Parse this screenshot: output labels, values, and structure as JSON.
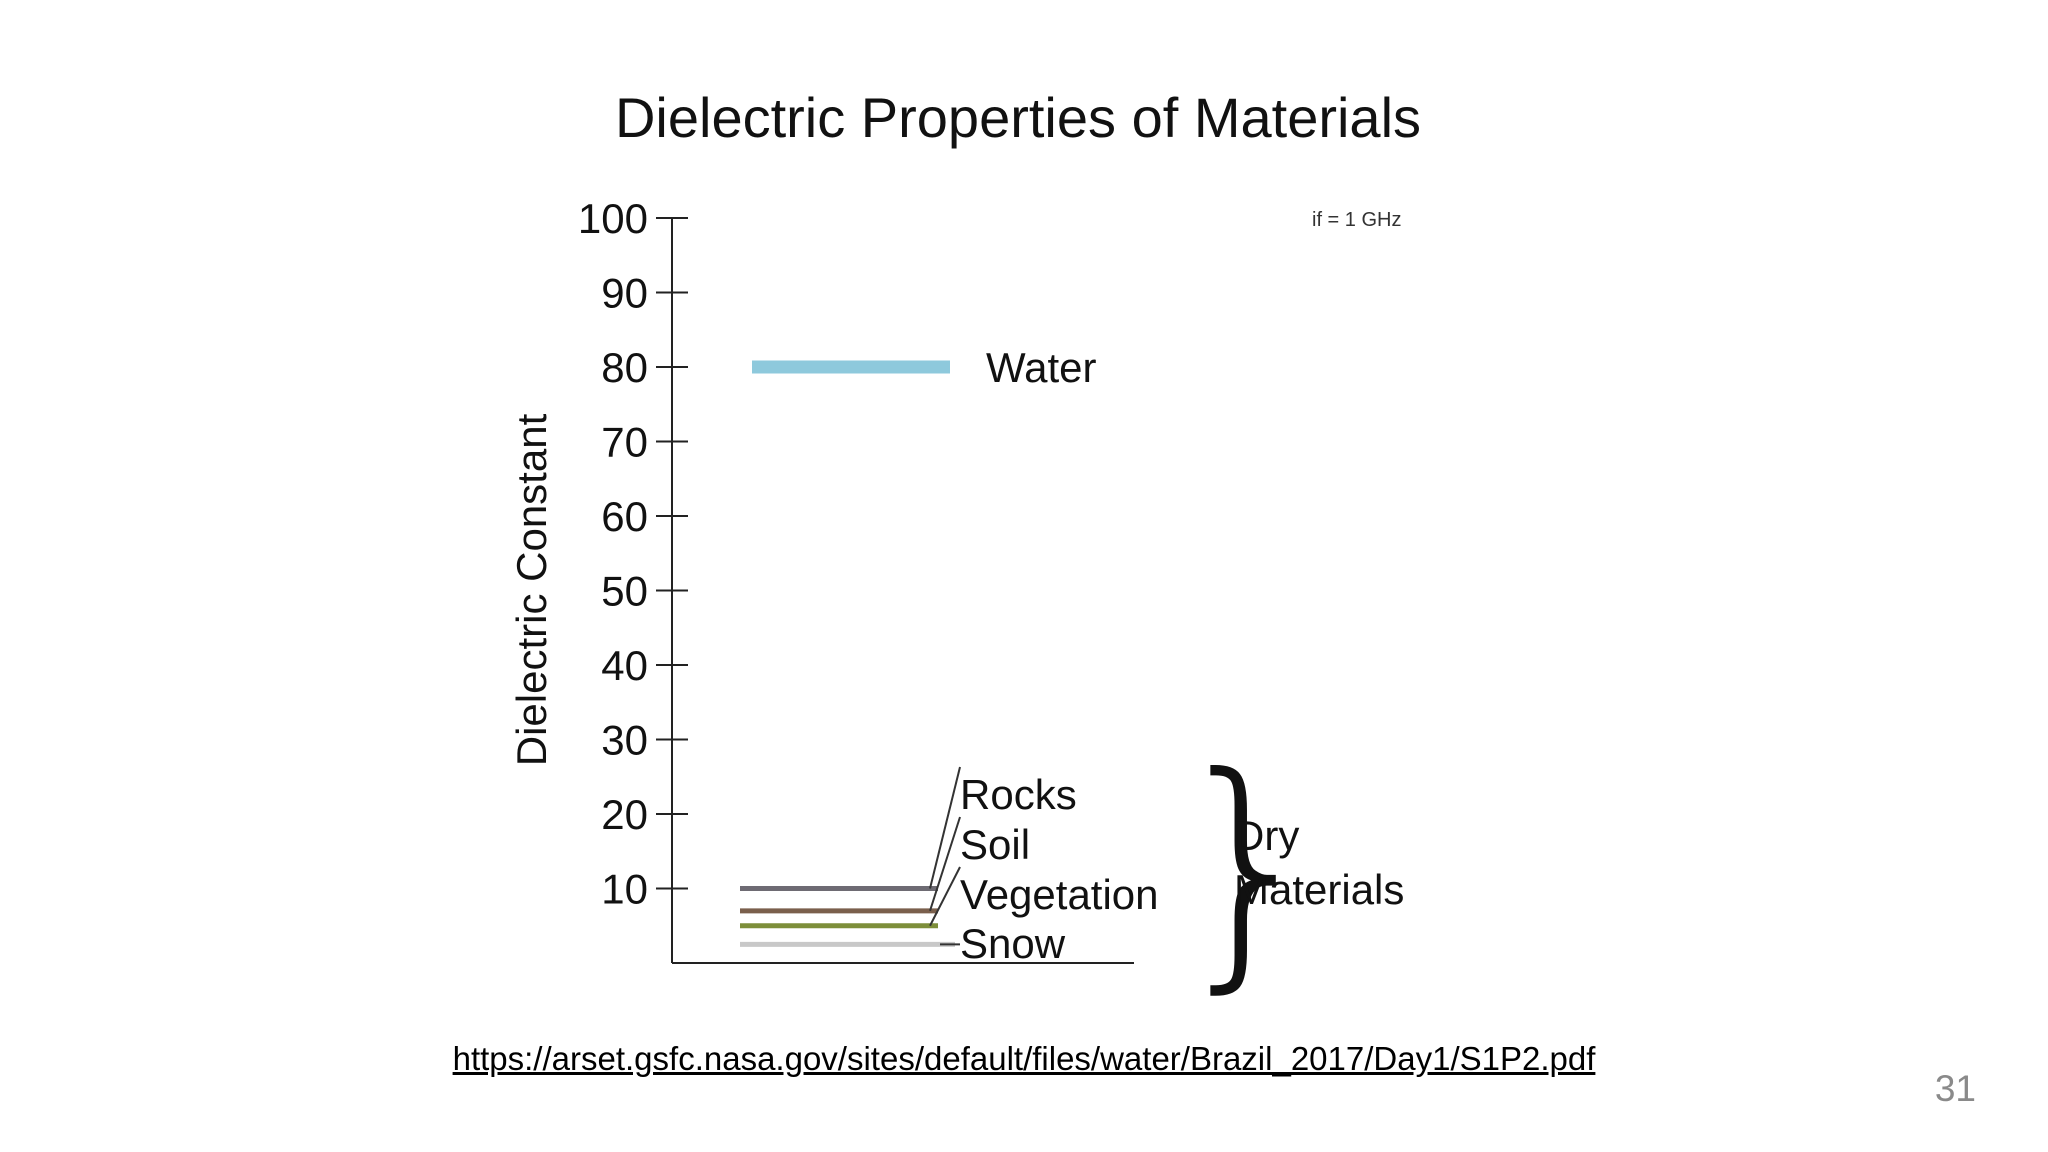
{
  "slide": {
    "source_url": "https://arset.gsfc.nasa.gov/sites/default/files/water/Brazil_2017/Day1/S1P2.pdf",
    "page_number": "31"
  },
  "chart_data": {
    "type": "line",
    "title": "Dielectric Properties of Materials",
    "xlabel": "",
    "ylabel": "Dielectric Constant",
    "ylim": [
      0,
      100
    ],
    "yticks": [
      10,
      20,
      30,
      40,
      50,
      60,
      70,
      80,
      90,
      100
    ],
    "grid": false,
    "annotation": "if  = 1 GHz",
    "series": [
      {
        "name": "Water",
        "value": 80,
        "color": "#8ec9dc"
      },
      {
        "name": "Rocks",
        "value": 10,
        "color": "#6e6b73"
      },
      {
        "name": "Soil",
        "value": 7,
        "color": "#7a5f4c"
      },
      {
        "name": "Vegetation",
        "value": 5,
        "color": "#7d8e3a"
      },
      {
        "name": "Snow",
        "value": 2.5,
        "color": "#c8c8c8"
      }
    ],
    "group_label": {
      "line1": "Dry",
      "line2": "Materials"
    }
  }
}
